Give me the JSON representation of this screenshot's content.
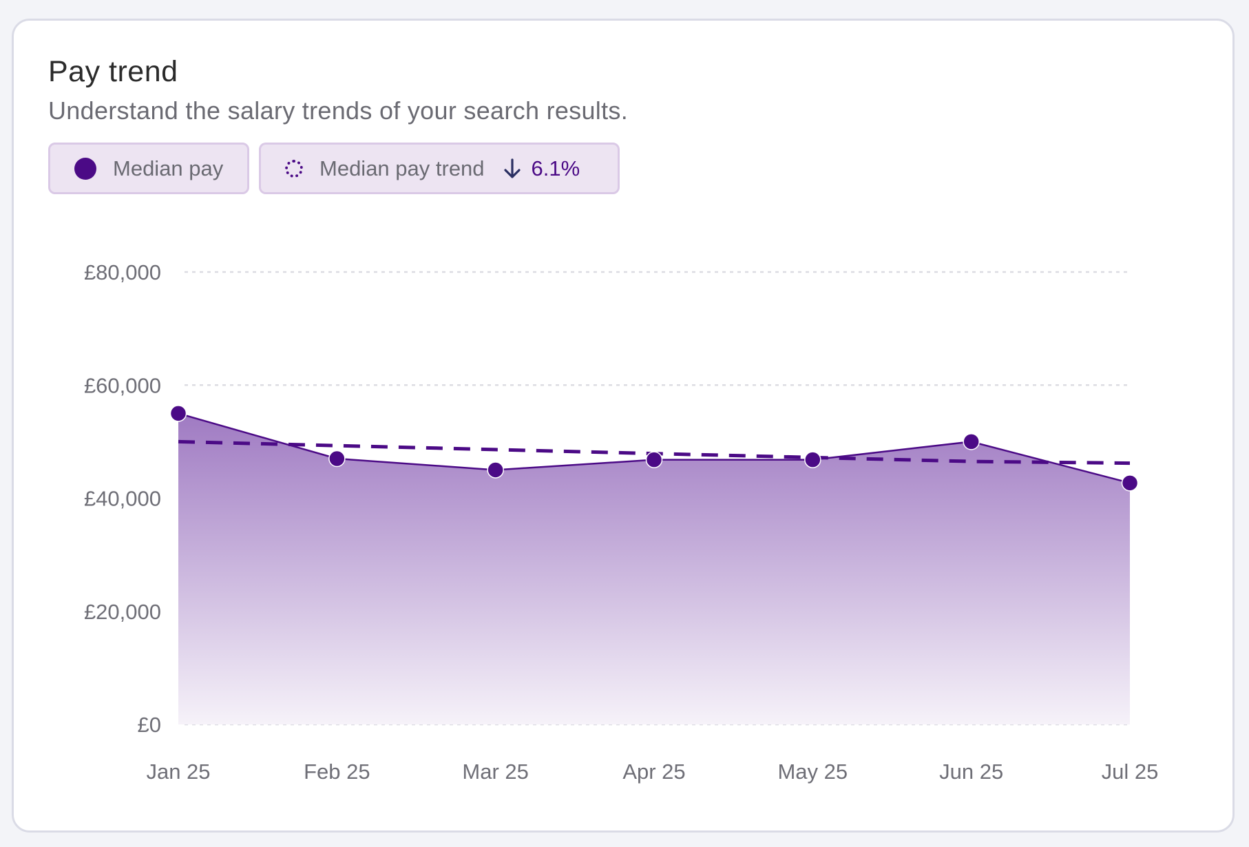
{
  "card": {
    "title": "Pay trend",
    "subtitle": "Understand the salary trends of your search results."
  },
  "legend": {
    "median_pay_label": "Median pay",
    "trend_label": "Median pay trend",
    "trend_direction_icon": "arrow-down-icon",
    "trend_value": "6.1%"
  },
  "colors": {
    "accent": "#4b0a86",
    "area_top": "#9f7ac2",
    "area_bottom": "#f6f2f9",
    "grid": "#dcdce2",
    "chip_bg": "#ede4f2",
    "chip_border": "#dac9e6"
  },
  "chart_data": {
    "type": "area",
    "categories": [
      "Jan 25",
      "Feb 25",
      "Mar 25",
      "Apr 25",
      "May 25",
      "Jun 25",
      "Jul 25"
    ],
    "series": [
      {
        "name": "Median pay",
        "values": [
          55000,
          47000,
          45000,
          46800,
          46800,
          50000,
          42700
        ]
      },
      {
        "name": "Median pay trend",
        "values": [
          50000,
          49300,
          48600,
          47900,
          47200,
          46500,
          46200
        ],
        "style": "dashed"
      }
    ],
    "y_ticks": [
      0,
      20000,
      40000,
      60000,
      80000
    ],
    "y_tick_labels": [
      "£0",
      "£20,000",
      "£40,000",
      "£60,000",
      "£80,000"
    ],
    "ylim": [
      0,
      80000
    ],
    "grid": true,
    "legend": "top-left"
  }
}
